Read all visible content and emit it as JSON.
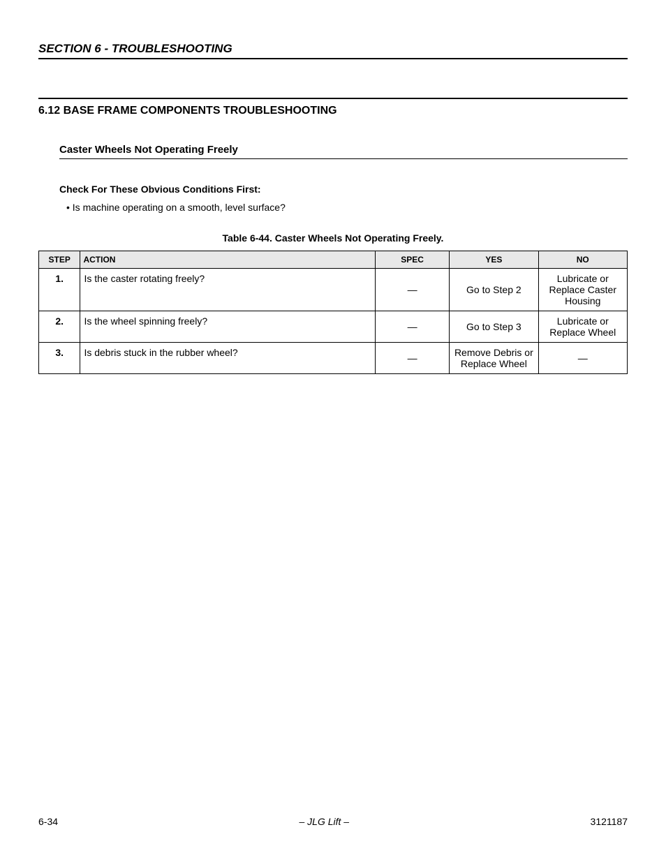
{
  "section_header": "SECTION 6 - TROUBLESHOOTING",
  "main_heading": "6.12  BASE FRAME COMPONENTS TROUBLESHOOTING",
  "sub_heading": "Caster Wheels Not Operating Freely",
  "check_heading": "Check For These Obvious Conditions First:",
  "bullet_1": "Is machine operating on a smooth, level surface?",
  "table_caption": "Table 6-44.  Caster Wheels Not Operating Freely.",
  "table": {
    "headers": {
      "step": "STEP",
      "action": "ACTION",
      "spec": "SPEC",
      "yes": "YES",
      "no": "NO"
    },
    "header_bg": "#e8e8e8",
    "border_color": "#000000",
    "rows": [
      {
        "step": "1.",
        "action": "Is the caster rotating freely?",
        "spec": "—",
        "yes": "Go to Step 2",
        "no": "Lubricate or Replace Caster Housing"
      },
      {
        "step": "2.",
        "action": "Is the wheel spinning freely?",
        "spec": "—",
        "yes": "Go to Step 3",
        "no": "Lubricate or Replace Wheel"
      },
      {
        "step": "3.",
        "action": "Is debris stuck in the rubber wheel?",
        "spec": "—",
        "yes": "Remove Debris or Replace Wheel",
        "no": "—"
      }
    ]
  },
  "footer": {
    "page": "6-34",
    "center": "– JLG Lift –",
    "docnum": "3121187"
  }
}
